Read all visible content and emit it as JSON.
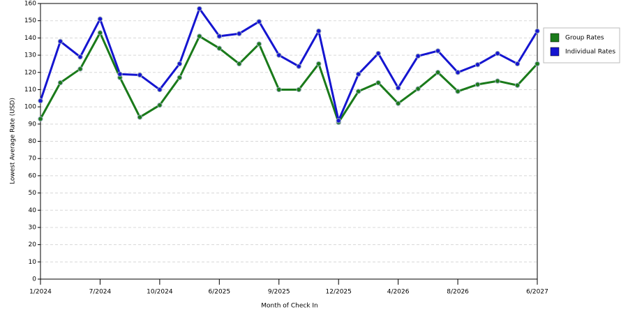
{
  "chart_data": {
    "type": "line",
    "y_label": "Lowest Average Rate (USD)",
    "x_label": "Month of Check In",
    "categories": [
      "1/2024",
      null,
      null,
      "7/2024",
      null,
      null,
      "10/2024",
      null,
      null,
      "6/2025",
      null,
      null,
      "9/2025",
      null,
      null,
      "12/2025",
      null,
      null,
      "4/2026",
      null,
      null,
      "8/2026",
      null,
      null,
      null,
      "6/2027"
    ],
    "series": [
      {
        "name": "Group Rates",
        "color": "#1a7a1a",
        "values": [
          93,
          114,
          122,
          143,
          117,
          94,
          101,
          117,
          141,
          134,
          125,
          136.5,
          110,
          110,
          125,
          91,
          109,
          114,
          102,
          110.5,
          120,
          109,
          113,
          115,
          112.5,
          125
        ]
      },
      {
        "name": "Individual Rates",
        "color": "#1515d0",
        "values": [
          103.5,
          138,
          129,
          151,
          119,
          118.5,
          110,
          125,
          157,
          141,
          142.5,
          149.5,
          130,
          123.5,
          144,
          92,
          119,
          131,
          111,
          129.5,
          132.5,
          120,
          124.5,
          131,
          125,
          144
        ]
      }
    ],
    "ylim": [
      0,
      160
    ],
    "yticks": [
      0,
      10,
      20,
      30,
      40,
      50,
      60,
      70,
      80,
      90,
      100,
      110,
      120,
      130,
      140,
      150,
      160
    ],
    "grid": true,
    "legend": "right"
  }
}
